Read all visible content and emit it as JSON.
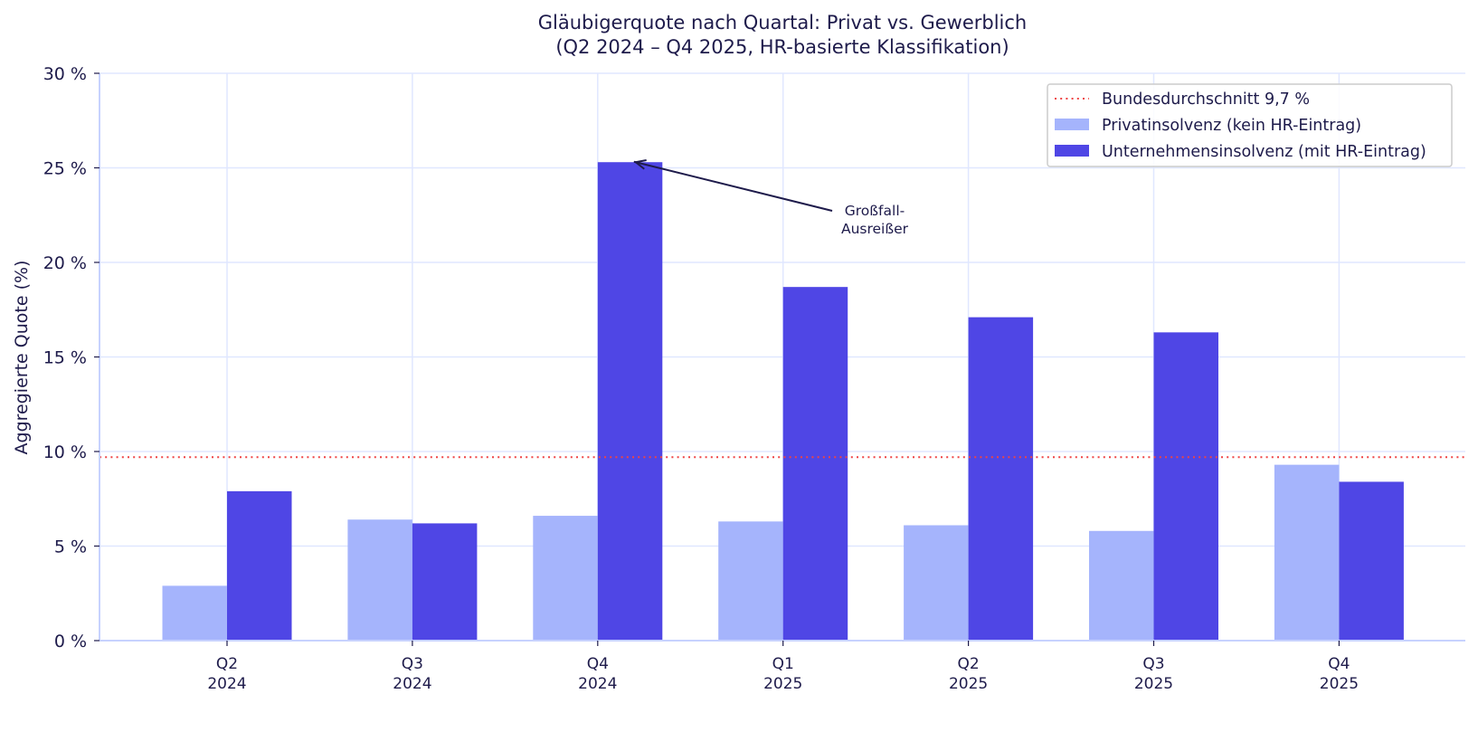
{
  "chart_data": {
    "type": "bar",
    "title": "Gläubigerquote nach Quartal: Privat vs. Gewerblich",
    "subtitle": "(Q2 2024 – Q4 2025, HR-basierte Klassifikation)",
    "xlabel": "",
    "ylabel": "Aggregierte Quote (%)",
    "ylim": [
      0,
      30
    ],
    "yticks": [
      0,
      5,
      10,
      15,
      20,
      25,
      30
    ],
    "ytick_labels": [
      "0 %",
      "5 %",
      "10 %",
      "15 %",
      "20 %",
      "25 %",
      "30 %"
    ],
    "categories": [
      "Q2\n2024",
      "Q3\n2024",
      "Q4\n2024",
      "Q1\n2025",
      "Q2\n2025",
      "Q3\n2025",
      "Q4\n2025"
    ],
    "category_lines": [
      [
        "Q2",
        "2024"
      ],
      [
        "Q3",
        "2024"
      ],
      [
        "Q4",
        "2024"
      ],
      [
        "Q1",
        "2025"
      ],
      [
        "Q2",
        "2025"
      ],
      [
        "Q3",
        "2025"
      ],
      [
        "Q4",
        "2025"
      ]
    ],
    "series": [
      {
        "name": "Privatinsolvenz (kein HR-Eintrag)",
        "color": "#a5b4fc",
        "values": [
          2.9,
          6.4,
          6.6,
          6.3,
          6.1,
          5.8,
          9.3
        ]
      },
      {
        "name": "Unternehmensinsolvenz (mit HR-Eintrag)",
        "color": "#4f46e5",
        "values": [
          7.9,
          6.2,
          25.3,
          18.7,
          17.1,
          16.3,
          8.4
        ]
      }
    ],
    "reference_line": {
      "label": "Bundesdurchschnitt 9,7 %",
      "value": 9.7,
      "color": "#ef4444",
      "style": "dotted"
    },
    "annotation": {
      "lines": [
        "Großfall-",
        "Ausreißer"
      ],
      "target_category_index": 2,
      "target_series_index": 1
    },
    "grid": true,
    "legend_position": "upper right"
  },
  "colors": {
    "text": "#1e1b4b",
    "grid": "#e0e7ff",
    "axis": "#c7d2fe"
  }
}
